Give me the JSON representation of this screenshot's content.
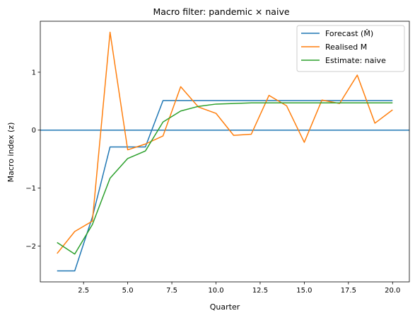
{
  "chart_data": {
    "type": "line",
    "title": "Macro filter: pandemic × naive",
    "xlabel": "Quarter",
    "ylabel": "Macro index (z)",
    "xlim": [
      0.05,
      20.95
    ],
    "ylim": [
      -2.62,
      1.88
    ],
    "x_ticks": [
      2.5,
      5.0,
      7.5,
      10.0,
      12.5,
      15.0,
      17.5,
      20.0
    ],
    "x_tick_labels": [
      "2.5",
      "5.0",
      "7.5",
      "10.0",
      "12.5",
      "15.0",
      "17.5",
      "20.0"
    ],
    "y_ticks": [
      -2,
      -1,
      0,
      1
    ],
    "y_tick_labels": [
      "−2",
      "−1",
      "0",
      "1"
    ],
    "grid": false,
    "legend_position": "top-right",
    "hline": {
      "y": 0,
      "color": "#1f77b4"
    },
    "x": [
      1,
      2,
      3,
      4,
      5,
      6,
      7,
      8,
      9,
      10,
      11,
      12,
      13,
      14,
      15,
      16,
      17,
      18,
      19,
      20
    ],
    "series": [
      {
        "name": "Forecast (M̂)",
        "color": "#1f77b4",
        "values": [
          -2.43,
          -2.43,
          -1.5,
          -0.29,
          -0.29,
          -0.29,
          0.51,
          0.51,
          0.51,
          0.51,
          0.51,
          0.51,
          0.51,
          0.51,
          0.51,
          0.51,
          0.51,
          0.51,
          0.51,
          0.51
        ]
      },
      {
        "name": "Realised M",
        "color": "#ff7f0e",
        "values": [
          -2.13,
          -1.75,
          -1.57,
          1.69,
          -0.34,
          -0.24,
          -0.1,
          0.75,
          0.4,
          0.29,
          -0.09,
          -0.07,
          0.6,
          0.42,
          -0.21,
          0.52,
          0.46,
          0.95,
          0.12,
          0.35
        ]
      },
      {
        "name": "Estimate: naive",
        "color": "#2ca02c",
        "values": [
          -1.94,
          -2.14,
          -1.63,
          -0.83,
          -0.49,
          -0.36,
          0.14,
          0.33,
          0.41,
          0.45,
          0.46,
          0.47,
          0.47,
          0.47,
          0.47,
          0.47,
          0.47,
          0.47,
          0.47,
          0.47
        ]
      }
    ]
  }
}
